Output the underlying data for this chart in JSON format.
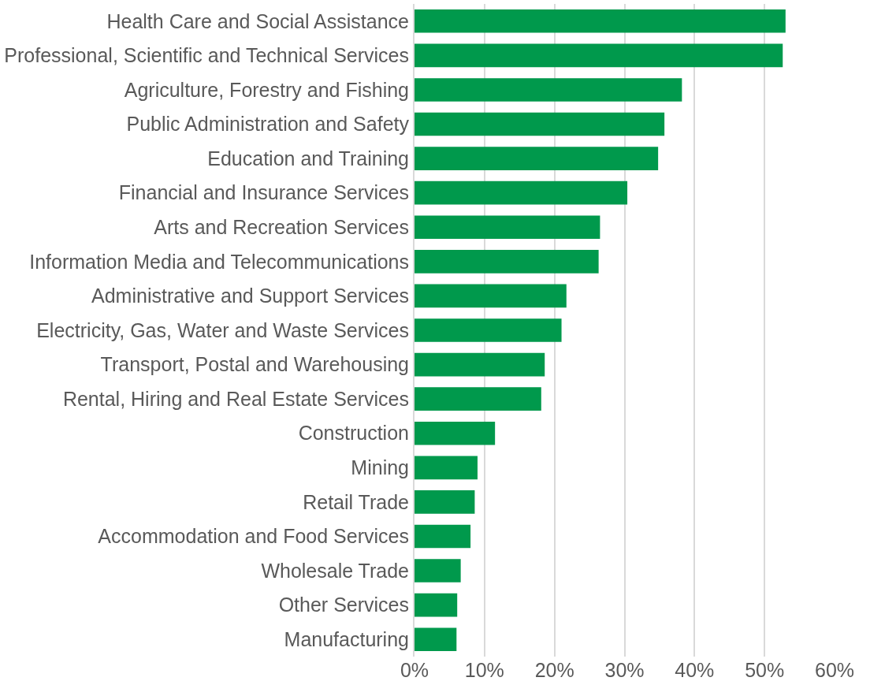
{
  "chart_data": {
    "type": "bar",
    "orientation": "horizontal",
    "categories": [
      "Health Care and Social Assistance",
      "Professional, Scientific and Technical Services",
      "Agriculture, Forestry and Fishing",
      "Public Administration and Safety",
      "Education and Training",
      "Financial and Insurance Services",
      "Arts and Recreation Services",
      "Information Media and Telecommunications",
      "Administrative and Support Services",
      "Electricity, Gas, Water and Waste Services",
      "Transport, Postal and Warehousing",
      "Rental, Hiring and Real Estate Services",
      "Construction",
      "Mining",
      "Retail Trade",
      "Accommodation and Food Services",
      "Wholesale Trade",
      "Other Services",
      "Manufacturing"
    ],
    "values": [
      53.0,
      52.6,
      38.2,
      35.7,
      34.8,
      30.4,
      26.5,
      26.3,
      21.7,
      21.0,
      18.6,
      18.1,
      11.5,
      9.0,
      8.6,
      8.0,
      6.6,
      6.1,
      6.0
    ],
    "color": "#00994c",
    "xlim": [
      0,
      60
    ],
    "xticks": [
      {
        "value": 0,
        "label": "0%"
      },
      {
        "value": 10,
        "label": "10%"
      },
      {
        "value": 20,
        "label": "20%"
      },
      {
        "value": 30,
        "label": "30%"
      },
      {
        "value": 40,
        "label": "40%"
      },
      {
        "value": 50,
        "label": "50%"
      },
      {
        "value": 60,
        "label": "60%"
      }
    ],
    "grid": "x"
  }
}
